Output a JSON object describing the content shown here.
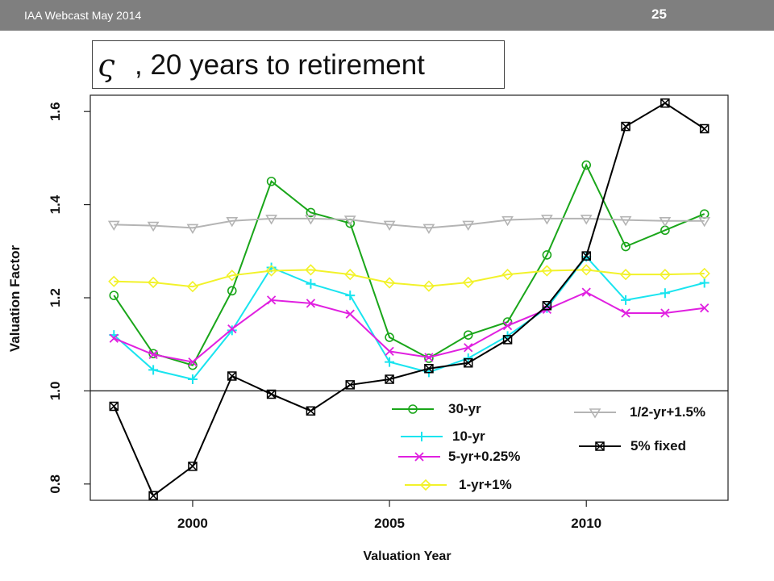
{
  "header": {
    "webcast": "IAA Webcast May 2014",
    "slide_number": "25"
  },
  "title": {
    "symbol": "ς",
    "text": ", 20 years to retirement"
  },
  "chart_data": {
    "type": "line",
    "xlabel": "Valuation Year",
    "ylabel": "Valuation Factor",
    "xlim": [
      1997.4,
      2013.6
    ],
    "ylim": [
      0.765,
      1.635
    ],
    "x_ticks": [
      2000,
      2005,
      2010
    ],
    "y_ticks": [
      {
        "value": 0.8,
        "label": "0.8"
      },
      {
        "value": 1.0,
        "label": "1.0"
      },
      {
        "value": 1.2,
        "label": "1.2"
      },
      {
        "value": 1.4,
        "label": "1.4"
      },
      {
        "value": 1.6,
        "label": "1.6"
      }
    ],
    "reference_line": 1.0,
    "x": [
      1998,
      1999,
      2000,
      2001,
      2002,
      2003,
      2004,
      2005,
      2006,
      2007,
      2008,
      2009,
      2010,
      2011,
      2012,
      2013
    ],
    "series": [
      {
        "name": "30-yr",
        "color": "#1aa61a",
        "marker": "circle",
        "values": [
          1.205,
          1.08,
          1.055,
          1.215,
          1.45,
          1.383,
          1.36,
          1.115,
          1.07,
          1.12,
          1.148,
          1.292,
          1.485,
          1.31,
          1.345,
          1.38
        ]
      },
      {
        "name": "10-yr",
        "color": "#19e4ef",
        "marker": "plus",
        "values": [
          1.12,
          1.045,
          1.025,
          1.13,
          1.265,
          1.23,
          1.205,
          1.062,
          1.04,
          1.07,
          1.118,
          1.178,
          1.288,
          1.195,
          1.21,
          1.232
        ]
      },
      {
        "name": "5-yr+0.25%",
        "color": "#e020e0",
        "marker": "cross",
        "values": [
          1.113,
          1.078,
          1.062,
          1.133,
          1.195,
          1.188,
          1.165,
          1.085,
          1.072,
          1.093,
          1.14,
          1.175,
          1.212,
          1.167,
          1.167,
          1.178
        ]
      },
      {
        "name": "1-yr+1%",
        "color": "#f2f22a",
        "marker": "diamond",
        "values": [
          1.235,
          1.233,
          1.224,
          1.248,
          1.258,
          1.26,
          1.25,
          1.232,
          1.225,
          1.233,
          1.25,
          1.258,
          1.26,
          1.25,
          1.25,
          1.252
        ]
      },
      {
        "name": "1/2-yr+1.5%",
        "color": "#b4b4b4",
        "marker": "triangle-down",
        "values": [
          1.357,
          1.355,
          1.35,
          1.365,
          1.37,
          1.37,
          1.368,
          1.357,
          1.35,
          1.357,
          1.367,
          1.37,
          1.37,
          1.367,
          1.365,
          1.365
        ]
      },
      {
        "name": "5% fixed",
        "color": "#000000",
        "marker": "boxed-x",
        "values": [
          0.967,
          0.775,
          0.838,
          1.032,
          0.993,
          0.957,
          1.013,
          1.025,
          1.048,
          1.06,
          1.11,
          1.183,
          1.29,
          1.568,
          1.618,
          1.563
        ]
      }
    ],
    "legend": [
      {
        "label": "30-yr",
        "series": 0
      },
      {
        "label": "10-yr",
        "series": 1
      },
      {
        "label": "5-yr+0.25%",
        "series": 2
      },
      {
        "label": "1-yr+1%",
        "series": 3
      },
      {
        "label": "1/2-yr+1.5%",
        "series": 4
      },
      {
        "label": "5% fixed",
        "series": 5
      }
    ]
  }
}
